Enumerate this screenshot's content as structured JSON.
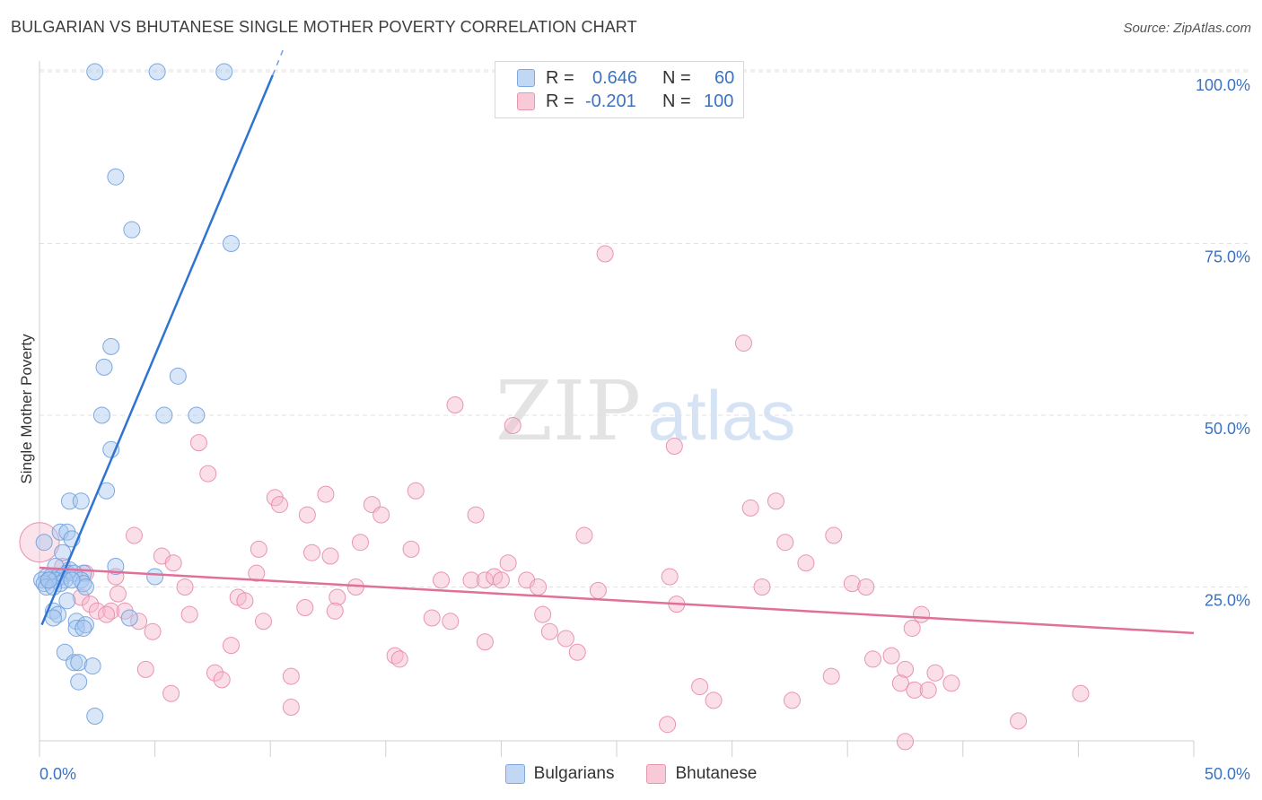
{
  "title": "BULGARIAN VS BHUTANESE SINGLE MOTHER POVERTY CORRELATION CHART",
  "source": "Source: ZipAtlas.com",
  "watermark": {
    "zip": "ZIP",
    "atlas": "atlas"
  },
  "legend": {
    "series1": {
      "r_label": "R =",
      "r_value": "0.646",
      "n_label": "N =",
      "n_value": "60"
    },
    "series2": {
      "r_label": "R =",
      "r_value": "-0.201",
      "n_label": "N =",
      "n_value": "100"
    }
  },
  "bottom_legend": {
    "series1": "Bulgarians",
    "series2": "Bhutanese"
  },
  "colors": {
    "blue_fill": "#a9c8f0",
    "blue_stroke": "#6fa0de",
    "blue_line": "#2f74d0",
    "pink_fill": "#f6b8cc",
    "pink_stroke": "#e88aa8",
    "pink_line": "#e0709a",
    "axis_text": "#3b72c4",
    "grid": "#e2e2e2"
  },
  "chart_data": {
    "type": "scatter",
    "title": "BULGARIAN VS BHUTANESE SINGLE MOTHER POVERTY CORRELATION CHART",
    "xlabel": "",
    "ylabel": "Single Mother Poverty",
    "xlim": [
      0,
      50
    ],
    "ylim": [
      0,
      105
    ],
    "x_ticks_labeled": [
      "0.0%",
      "50.0%"
    ],
    "y_ticks": [
      25,
      50,
      75,
      100
    ],
    "y_tick_labels": [
      "25.0%",
      "50.0%",
      "75.0%",
      "100.0%"
    ],
    "grid": true,
    "series": [
      {
        "name": "Bulgarians",
        "r": 0.646,
        "n": 60,
        "trend": {
          "x0": 0.1,
          "y0": 19.5,
          "x1": 10.1,
          "y1": 99.5
        },
        "points": [
          [
            2.4,
            100
          ],
          [
            5.1,
            100
          ],
          [
            8.0,
            100
          ],
          [
            3.3,
            84.7
          ],
          [
            4.0,
            77
          ],
          [
            8.3,
            75
          ],
          [
            3.1,
            60
          ],
          [
            2.8,
            57
          ],
          [
            6.0,
            55.7
          ],
          [
            2.7,
            50
          ],
          [
            5.4,
            50
          ],
          [
            6.8,
            50
          ],
          [
            3.1,
            45
          ],
          [
            2.9,
            39
          ],
          [
            1.3,
            37.5
          ],
          [
            1.8,
            37.5
          ],
          [
            0.9,
            33
          ],
          [
            1.2,
            33
          ],
          [
            1.4,
            32
          ],
          [
            0.2,
            31.5
          ],
          [
            1.0,
            30
          ],
          [
            0.7,
            28
          ],
          [
            1.3,
            27.5
          ],
          [
            1.2,
            27
          ],
          [
            1.9,
            27
          ],
          [
            0.3,
            26.5
          ],
          [
            0.5,
            26.5
          ],
          [
            0.8,
            26.5
          ],
          [
            1.0,
            26.5
          ],
          [
            3.3,
            28
          ],
          [
            1.5,
            27
          ],
          [
            0.1,
            26
          ],
          [
            0.4,
            26
          ],
          [
            0.7,
            26
          ],
          [
            1.1,
            26
          ],
          [
            1.8,
            26
          ],
          [
            5.0,
            26.5
          ],
          [
            0.2,
            25.5
          ],
          [
            0.9,
            25.5
          ],
          [
            1.9,
            25.5
          ],
          [
            0.3,
            25
          ],
          [
            0.6,
            25
          ],
          [
            2.0,
            25
          ],
          [
            1.2,
            23
          ],
          [
            0.6,
            21.5
          ],
          [
            0.8,
            21
          ],
          [
            0.6,
            20.5
          ],
          [
            1.6,
            20
          ],
          [
            3.9,
            20.5
          ],
          [
            1.6,
            19
          ],
          [
            2.0,
            19.5
          ],
          [
            1.9,
            19
          ],
          [
            1.1,
            15.5
          ],
          [
            1.5,
            14
          ],
          [
            1.7,
            14
          ],
          [
            2.3,
            13.5
          ],
          [
            1.7,
            11.2
          ],
          [
            2.4,
            6.2
          ],
          [
            0.4,
            26
          ],
          [
            1.4,
            26
          ]
        ]
      },
      {
        "name": "Bhutanese",
        "r": -0.201,
        "n": 100,
        "trend": {
          "x0": 0,
          "y0": 27.8,
          "x1": 50,
          "y1": 18.3
        },
        "points": [
          [
            24.5,
            73.5
          ],
          [
            30.5,
            60.5
          ],
          [
            18.0,
            51.5
          ],
          [
            20.5,
            48.5
          ],
          [
            27.5,
            45.5
          ],
          [
            6.9,
            46
          ],
          [
            7.3,
            41.5
          ],
          [
            10.2,
            38
          ],
          [
            12.4,
            38.5
          ],
          [
            16.3,
            39
          ],
          [
            10.4,
            37
          ],
          [
            14.4,
            37
          ],
          [
            11.6,
            35.5
          ],
          [
            14.8,
            35.5
          ],
          [
            18.9,
            35.5
          ],
          [
            30.8,
            36.5
          ],
          [
            31.9,
            37.5
          ],
          [
            4.1,
            32.5
          ],
          [
            13.9,
            31.5
          ],
          [
            23.6,
            32.5
          ],
          [
            32.3,
            31.5
          ],
          [
            34.4,
            32.5
          ],
          [
            9.5,
            30.5
          ],
          [
            11.8,
            30
          ],
          [
            12.6,
            29.5
          ],
          [
            16.1,
            30.5
          ],
          [
            5.3,
            29.5
          ],
          [
            5.8,
            28.5
          ],
          [
            20.3,
            28.5
          ],
          [
            1.0,
            28
          ],
          [
            2.0,
            27
          ],
          [
            9.4,
            27
          ],
          [
            3.3,
            26.5
          ],
          [
            27.3,
            26.5
          ],
          [
            33.2,
            28.5
          ],
          [
            17.4,
            26
          ],
          [
            18.7,
            26
          ],
          [
            19.3,
            26
          ],
          [
            19.7,
            26.5
          ],
          [
            20.0,
            26
          ],
          [
            21.1,
            26
          ],
          [
            35.2,
            25.5
          ],
          [
            6.3,
            25
          ],
          [
            13.7,
            25
          ],
          [
            21.6,
            25
          ],
          [
            24.2,
            24.5
          ],
          [
            31.3,
            25
          ],
          [
            35.8,
            25
          ],
          [
            3.4,
            24
          ],
          [
            1.8,
            23.5
          ],
          [
            8.6,
            23.5
          ],
          [
            8.9,
            23
          ],
          [
            12.9,
            23.5
          ],
          [
            2.2,
            22.5
          ],
          [
            11.5,
            22
          ],
          [
            27.6,
            22.5
          ],
          [
            2.5,
            21.5
          ],
          [
            3.1,
            21.5
          ],
          [
            3.7,
            21.5
          ],
          [
            2.9,
            21
          ],
          [
            6.5,
            21
          ],
          [
            12.8,
            21.5
          ],
          [
            21.8,
            21
          ],
          [
            17.0,
            20.5
          ],
          [
            9.7,
            20
          ],
          [
            17.8,
            20
          ],
          [
            4.3,
            20
          ],
          [
            38.2,
            21
          ],
          [
            22.1,
            18.5
          ],
          [
            37.8,
            19
          ],
          [
            4.9,
            18.5
          ],
          [
            22.8,
            17.5
          ],
          [
            19.3,
            17
          ],
          [
            8.3,
            16.5
          ],
          [
            15.4,
            15
          ],
          [
            15.6,
            14.5
          ],
          [
            23.3,
            15.5
          ],
          [
            36.1,
            14.5
          ],
          [
            36.9,
            15
          ],
          [
            4.6,
            13
          ],
          [
            7.6,
            12.5
          ],
          [
            10.9,
            12
          ],
          [
            34.3,
            12
          ],
          [
            37.5,
            13
          ],
          [
            38.8,
            12.5
          ],
          [
            7.9,
            11.5
          ],
          [
            37.3,
            11
          ],
          [
            39.5,
            11
          ],
          [
            28.6,
            10.5
          ],
          [
            37.9,
            10
          ],
          [
            38.5,
            10
          ],
          [
            5.7,
            9.5
          ],
          [
            29.2,
            8.5
          ],
          [
            32.6,
            8.5
          ],
          [
            45.1,
            9.5
          ],
          [
            10.9,
            7.5
          ],
          [
            27.2,
            5
          ],
          [
            42.4,
            5.5
          ],
          [
            37.5,
            2.5
          ],
          [
            0.0,
            31.5
          ]
        ]
      }
    ]
  }
}
